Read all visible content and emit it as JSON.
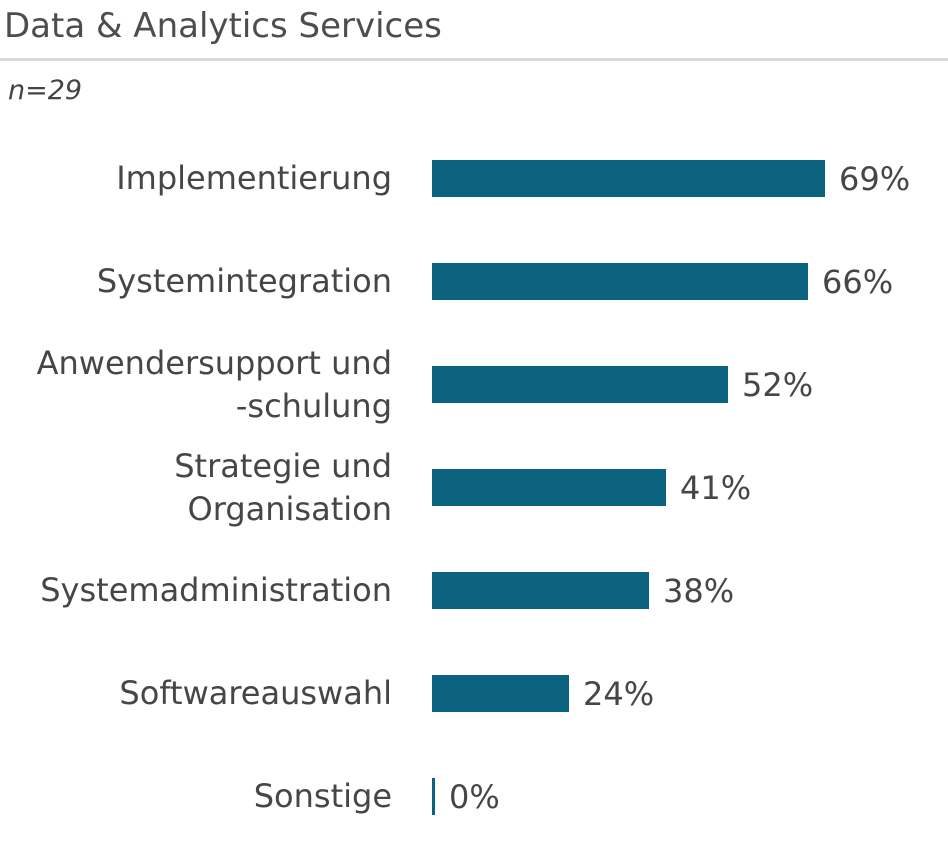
{
  "header": {
    "title": "Data & Analytics Services",
    "sample_size": "n=29"
  },
  "chart_data": {
    "type": "bar",
    "orientation": "horizontal",
    "title": "Data & Analytics Services",
    "subtitle": "n=29",
    "categories": [
      "Implementierung",
      "Systemintegration",
      "Anwendersupport und -schulung",
      "Strategie und Organisation",
      "Systemadministration",
      "Softwareauswahl",
      "Sonstige"
    ],
    "category_display": [
      "Implementierung",
      "Systemintegration",
      "Anwendersupport und\n-schulung",
      "Strategie und\nOrganisation",
      "Systemadministration",
      "Softwareauswahl",
      "Sonstige"
    ],
    "values": [
      69,
      66,
      52,
      41,
      38,
      24,
      0
    ],
    "value_labels": [
      "69%",
      "66%",
      "52%",
      "41%",
      "38%",
      "24%",
      "0%"
    ],
    "xlim": [
      0,
      100
    ],
    "unit": "%",
    "grid": false,
    "legend": false,
    "colors": {
      "bar": "#0b627f",
      "text": "#464646",
      "title": "#4d4d4d",
      "divider": "#d9d9d9",
      "background": "#ffffff"
    }
  }
}
